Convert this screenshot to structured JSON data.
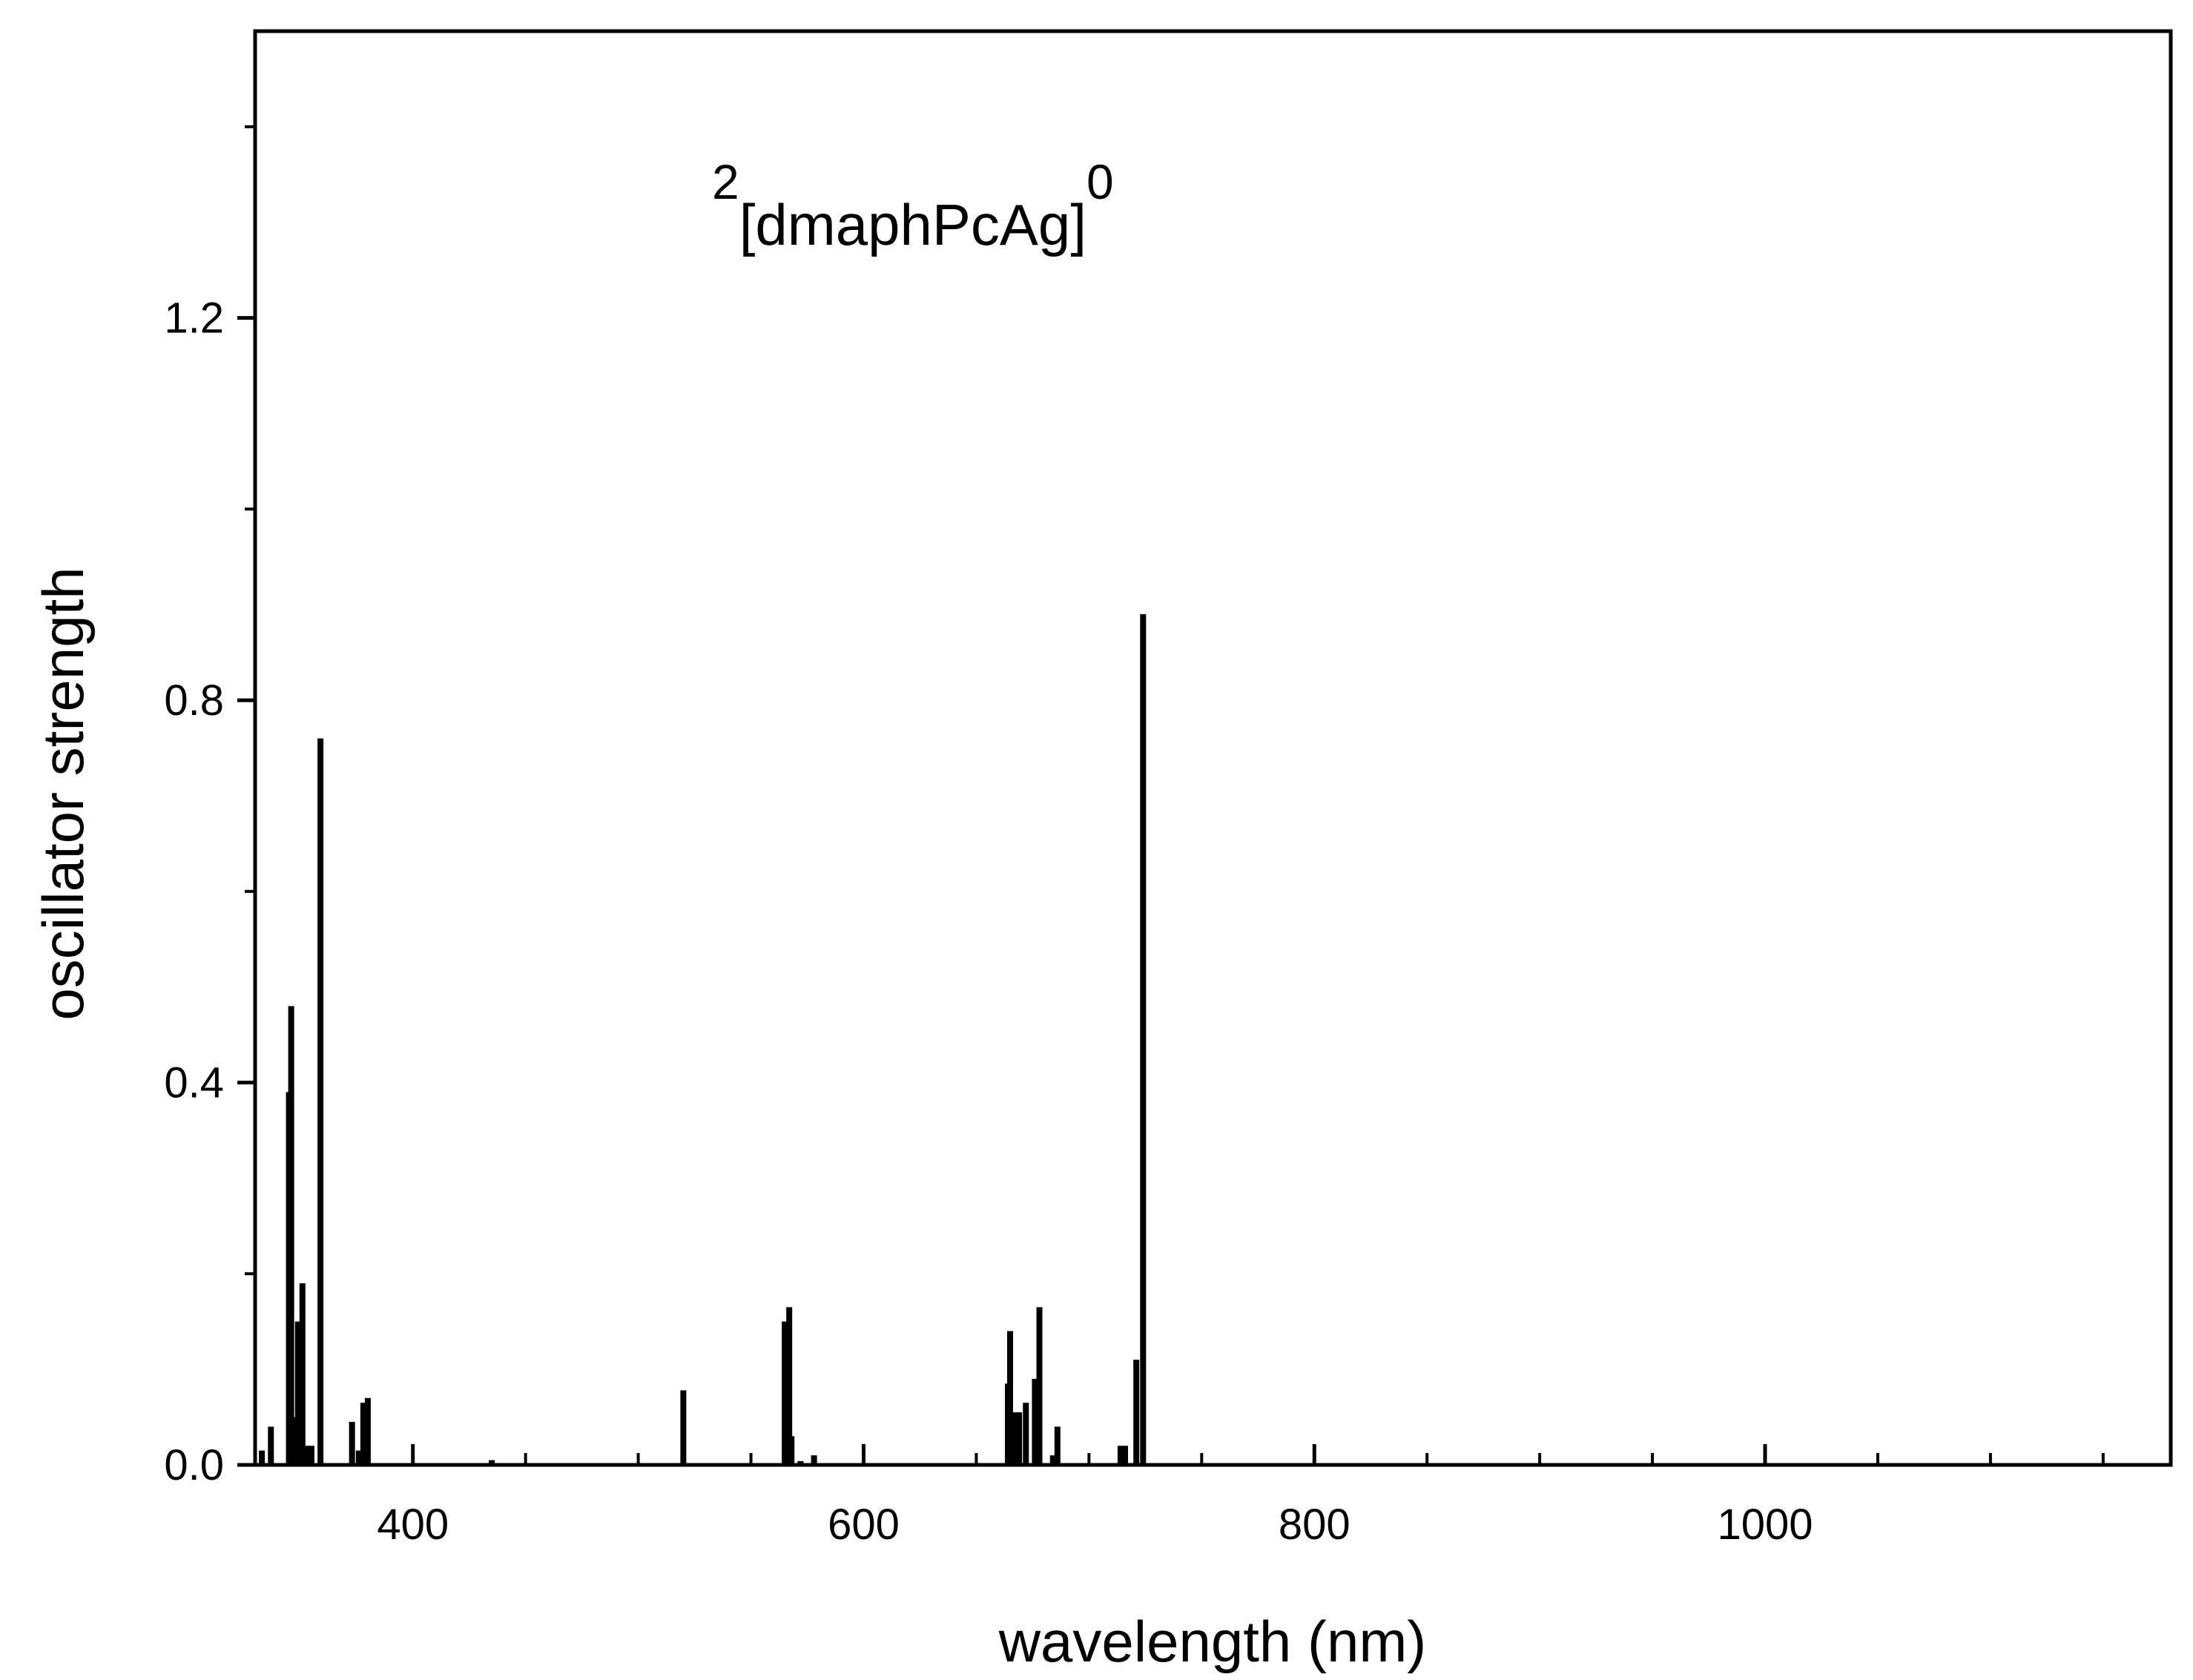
{
  "chart_data": {
    "type": "bar",
    "title": "",
    "annotation": {
      "prefix": "2",
      "main": "[dmaphPcAg]",
      "suffix": "0"
    },
    "xlabel": "wavelength (nm)",
    "ylabel": "oscillator strength",
    "xlim": [
      330,
      1180
    ],
    "ylim": [
      0,
      1.5
    ],
    "x_ticks": [
      400,
      600,
      800,
      1000
    ],
    "x_tick_labels": [
      "400",
      "600",
      "800",
      "1000"
    ],
    "x_minor_ticks": [
      350,
      450,
      500,
      550,
      650,
      700,
      750,
      850,
      900,
      950,
      1050,
      1100,
      1150
    ],
    "y_ticks": [
      0,
      0.4,
      0.8,
      1.2
    ],
    "y_tick_labels": [
      "0.0",
      "0.4",
      "0.8",
      "1.2"
    ],
    "y_minor_ticks": [
      0.2,
      0.6,
      1.0,
      1.4
    ],
    "grid": false,
    "legend": "none",
    "bar_color": "#000000",
    "points": [
      {
        "x": 333,
        "y": 0.015
      },
      {
        "x": 337,
        "y": 0.04
      },
      {
        "x": 345,
        "y": 0.39
      },
      {
        "x": 346,
        "y": 0.48
      },
      {
        "x": 347,
        "y": 0.05
      },
      {
        "x": 349,
        "y": 0.15
      },
      {
        "x": 351,
        "y": 0.19
      },
      {
        "x": 353,
        "y": 0.02
      },
      {
        "x": 355,
        "y": 0.02
      },
      {
        "x": 359,
        "y": 0.76
      },
      {
        "x": 373,
        "y": 0.045
      },
      {
        "x": 376,
        "y": 0.015
      },
      {
        "x": 378,
        "y": 0.065
      },
      {
        "x": 380,
        "y": 0.07
      },
      {
        "x": 435,
        "y": 0.005
      },
      {
        "x": 520,
        "y": 0.078
      },
      {
        "x": 565,
        "y": 0.15
      },
      {
        "x": 567,
        "y": 0.165
      },
      {
        "x": 568,
        "y": 0.03
      },
      {
        "x": 572,
        "y": 0.004
      },
      {
        "x": 578,
        "y": 0.01
      },
      {
        "x": 664,
        "y": 0.085
      },
      {
        "x": 665,
        "y": 0.14
      },
      {
        "x": 667,
        "y": 0.055
      },
      {
        "x": 669,
        "y": 0.055
      },
      {
        "x": 672,
        "y": 0.065
      },
      {
        "x": 676,
        "y": 0.09
      },
      {
        "x": 678,
        "y": 0.165
      },
      {
        "x": 684,
        "y": 0.01
      },
      {
        "x": 686,
        "y": 0.04
      },
      {
        "x": 714,
        "y": 0.02
      },
      {
        "x": 716,
        "y": 0.02
      },
      {
        "x": 721,
        "y": 0.11
      },
      {
        "x": 724,
        "y": 0.89
      }
    ]
  }
}
